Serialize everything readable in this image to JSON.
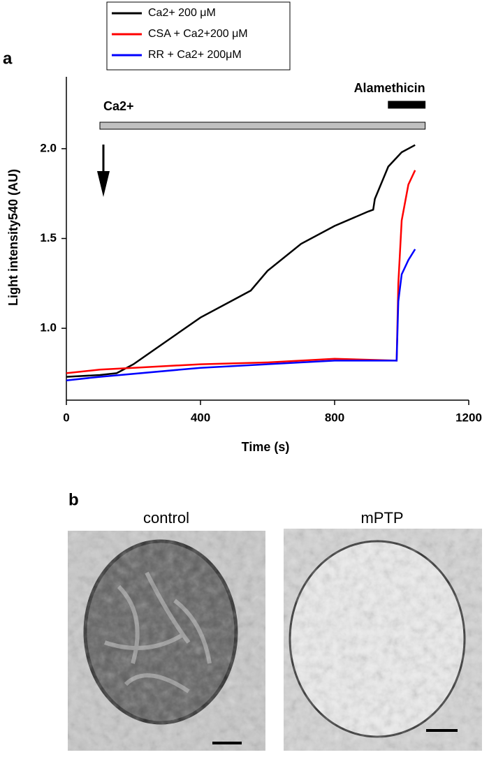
{
  "chart_data": {
    "type": "line",
    "panel_label": "a",
    "x_label": "Time (s)",
    "y_label": "Light intensity540 (AU)",
    "xlim": [
      0,
      1200
    ],
    "xticks": [
      0,
      400,
      800,
      1200
    ],
    "ylim": [
      0.6,
      2.4
    ],
    "yticks": [
      {
        "value": 1,
        "label": "1.0"
      },
      1.5,
      {
        "value": 2,
        "label": "2.0"
      }
    ],
    "legend": "top-left",
    "series": [
      {
        "name": "Ca2+ 200 μM",
        "color": "#000000",
        "x": [
          0,
          100,
          150,
          200,
          300,
          400,
          500,
          550,
          600,
          700,
          800,
          900,
          915,
          920,
          960,
          1000,
          1040
        ],
        "values": [
          0.73,
          0.74,
          0.75,
          0.8,
          0.93,
          1.06,
          1.16,
          1.21,
          1.32,
          1.47,
          1.57,
          1.65,
          1.66,
          1.72,
          1.9,
          1.98,
          2.02
        ]
      },
      {
        "name": "CSA + Ca2+200 μM",
        "color": "#ff0000",
        "x": [
          0,
          100,
          200,
          400,
          600,
          800,
          985,
          990,
          1000,
          1020,
          1040
        ],
        "values": [
          0.75,
          0.77,
          0.78,
          0.8,
          0.81,
          0.83,
          0.82,
          1.25,
          1.6,
          1.8,
          1.88
        ]
      },
      {
        "name": "RR + Ca2+ 200μM",
        "color": "#0000ff",
        "x": [
          0,
          100,
          400,
          800,
          985,
          990,
          1000,
          1020,
          1040
        ],
        "values": [
          0.71,
          0.73,
          0.78,
          0.82,
          0.82,
          1.15,
          1.3,
          1.38,
          1.44
        ]
      }
    ],
    "annotations": [
      {
        "text": "Ca2+",
        "x": [
          100,
          1070
        ],
        "color": "#c0c0c0"
      },
      {
        "text": "Alamethicin",
        "x": [
          960,
          1070
        ],
        "color": "#000000"
      }
    ]
  },
  "figure": {
    "panel_label": "b",
    "images": [
      "control",
      "mPTP"
    ]
  }
}
